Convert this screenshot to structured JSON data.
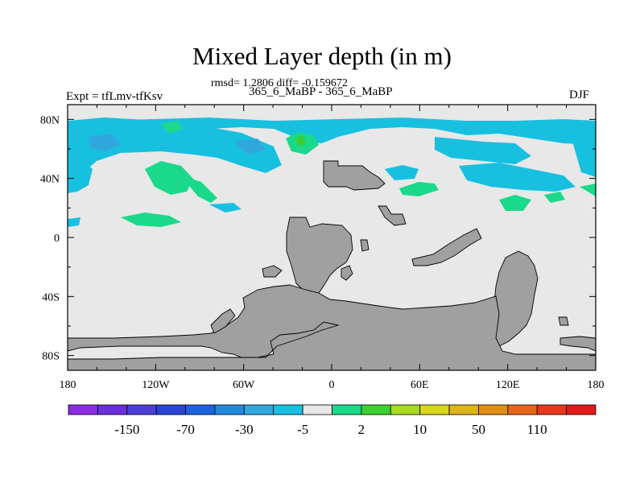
{
  "chart_data": {
    "type": "heatmap",
    "title": "Mixed Layer depth (in m)",
    "stats": "rmsd= 1.2806 diff= -0.159672",
    "subtitle": "365_6_MaBP - 365_6_MaBP",
    "left_label": "Expt = tfLmv-tfKsv",
    "right_label": "DJF",
    "x_ticks": [
      {
        "value": -180,
        "label": "180"
      },
      {
        "value": -120,
        "label": "120W"
      },
      {
        "value": -60,
        "label": "60W"
      },
      {
        "value": 0,
        "label": "0"
      },
      {
        "value": 60,
        "label": "60E"
      },
      {
        "value": 120,
        "label": "120E"
      },
      {
        "value": 180,
        "label": "180"
      }
    ],
    "y_ticks": [
      {
        "value": 80,
        "label": "80N"
      },
      {
        "value": 40,
        "label": "40N"
      },
      {
        "value": 0,
        "label": "0"
      },
      {
        "value": -40,
        "label": "40S"
      },
      {
        "value": -80,
        "label": "80S"
      }
    ],
    "xlim": [
      -180,
      180
    ],
    "ylim": [
      -90,
      90
    ],
    "colorbar": {
      "colors": [
        "#8a2be2",
        "#6a2ed8",
        "#4b3fd6",
        "#2a44d6",
        "#1d63e0",
        "#2288dd",
        "#30a8dd",
        "#18c0e0",
        "#e8e8e8",
        "#1ad98a",
        "#3ccf30",
        "#a8dc20",
        "#d8d61a",
        "#dcb51a",
        "#e38e18",
        "#e6661a",
        "#e6381d",
        "#e01a1a"
      ],
      "labels": [
        {
          "after": 1,
          "label": "-150"
        },
        {
          "after": 3,
          "label": "-70"
        },
        {
          "after": 5,
          "label": "-30"
        },
        {
          "after": 7,
          "label": "-5"
        },
        {
          "after": 9,
          "label": "2"
        },
        {
          "after": 11,
          "label": "10"
        },
        {
          "after": 13,
          "label": "50"
        },
        {
          "after": 15,
          "label": "110"
        }
      ]
    },
    "colors": {
      "background": "#e8e8e8",
      "land": "#a0a0a0",
      "cyan": "#18c0e0",
      "blue": "#30a8dd",
      "green": "#1ad98a",
      "lime": "#3ccf30"
    }
  }
}
